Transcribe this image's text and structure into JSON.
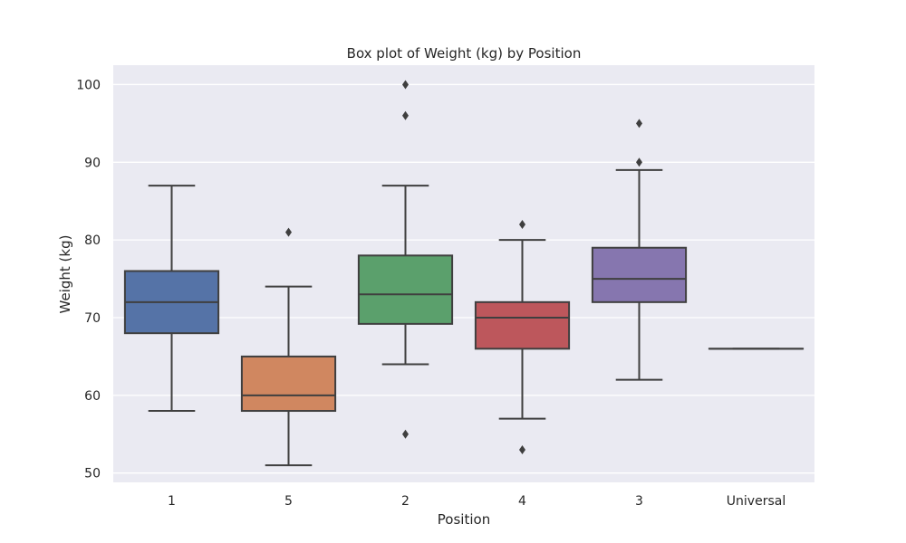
{
  "chart_data": {
    "type": "box",
    "title": "Box plot of Weight (kg) by Position",
    "xlabel": "Position",
    "ylabel": "Weight (kg)",
    "ylim": [
      48.8,
      102.5
    ],
    "yticks": [
      50,
      60,
      70,
      80,
      90,
      100
    ],
    "grid": true,
    "categories": [
      "1",
      "5",
      "2",
      "4",
      "3",
      "Universal"
    ],
    "boxes": [
      {
        "category": "1",
        "whisker_low": 58,
        "q1": 68,
        "median": 72,
        "q3": 76,
        "whisker_high": 87,
        "outliers": [],
        "color": "#5573A7"
      },
      {
        "category": "5",
        "whisker_low": 51,
        "q1": 58,
        "median": 60,
        "q3": 65,
        "whisker_high": 74,
        "outliers": [
          81
        ],
        "color": "#D08760"
      },
      {
        "category": "2",
        "whisker_low": 64,
        "q1": 69.2,
        "median": 73,
        "q3": 78,
        "whisker_high": 87,
        "outliers": [
          55,
          96,
          100
        ],
        "color": "#5BA06C"
      },
      {
        "category": "4",
        "whisker_low": 57,
        "q1": 66,
        "median": 70,
        "q3": 72,
        "whisker_high": 80,
        "outliers": [
          53,
          82
        ],
        "color": "#BD575C"
      },
      {
        "category": "3",
        "whisker_low": 62,
        "q1": 72,
        "median": 75,
        "q3": 79,
        "whisker_high": 89,
        "outliers": [
          90,
          95
        ],
        "color": "#8676AF"
      },
      {
        "category": "Universal",
        "whisker_low": 66,
        "q1": 66,
        "median": 66,
        "q3": 66,
        "whisker_high": 66,
        "outliers": [],
        "color": "#937860"
      }
    ],
    "colors": {
      "plot_background": "#EAEAF2",
      "grid": "#FFFFFF",
      "line": "#3F3F3F",
      "text": "#262626"
    }
  }
}
